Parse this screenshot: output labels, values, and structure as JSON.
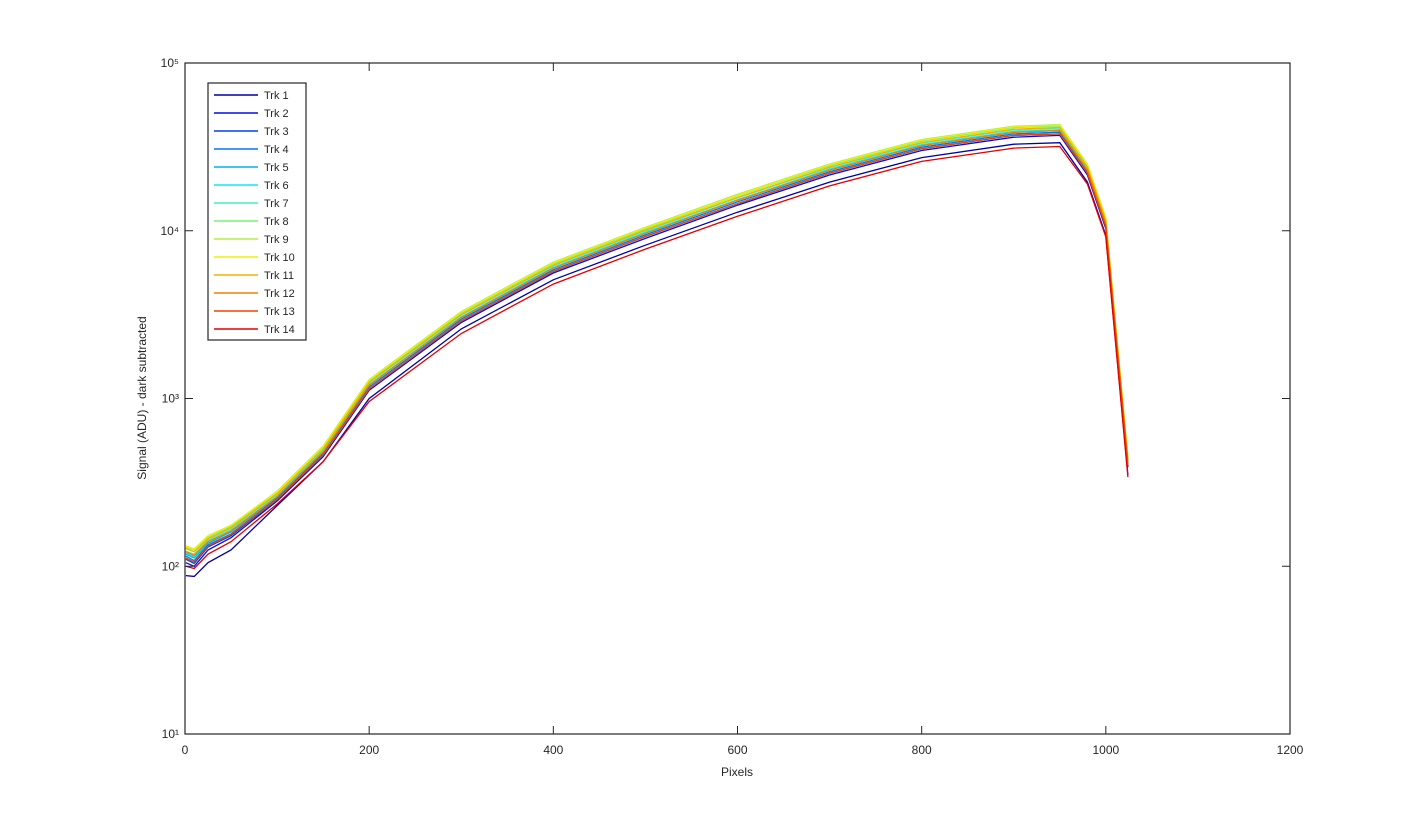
{
  "chart_data": {
    "type": "line",
    "xlabel": "Pixels",
    "ylabel": "Signal (ADU) - dark subtracted",
    "x": [
      1,
      10,
      25,
      50,
      100,
      150,
      200,
      300,
      400,
      500,
      600,
      700,
      800,
      900,
      950,
      980,
      1000,
      1024
    ],
    "xlim": [
      0,
      1200
    ],
    "xticks": [
      0,
      200,
      400,
      600,
      800,
      1000,
      1200
    ],
    "ylim": [
      10,
      100000
    ],
    "log_y": true,
    "yticks": [
      {
        "value": 10,
        "label": "10¹"
      },
      {
        "value": 100,
        "label": "10²"
      },
      {
        "value": 1000,
        "label": "10³"
      },
      {
        "value": 10000,
        "label": "10⁴"
      },
      {
        "value": 100000,
        "label": "10⁵"
      }
    ],
    "legend": "upper left",
    "series": [
      {
        "name": "Trk 1",
        "color": "#0000a8",
        "values": [
          88,
          87,
          105,
          125,
          230,
          420,
          1000,
          2600,
          5100,
          8200,
          12900,
          19500,
          27300,
          32800,
          33500,
          19500,
          9400,
          350
        ]
      },
      {
        "name": "Trk 2",
        "color": "#0010d8",
        "values": [
          105,
          100,
          125,
          148,
          245,
          450,
          1120,
          2840,
          5600,
          9000,
          14200,
          21500,
          30100,
          36100,
          37000,
          21500,
          10300,
          390
        ]
      },
      {
        "name": "Trk 3",
        "color": "#0044e8",
        "values": [
          110,
          104,
          130,
          152,
          250,
          460,
          1140,
          2900,
          5720,
          9240,
          14500,
          22000,
          30800,
          37000,
          37800,
          22000,
          10600,
          400
        ]
      },
      {
        "name": "Trk 4",
        "color": "#0078f0",
        "values": [
          115,
          108,
          134,
          156,
          255,
          470,
          1170,
          2970,
          5850,
          9450,
          14850,
          22500,
          31500,
          37800,
          38700,
          22500,
          10800,
          400
        ]
      },
      {
        "name": "Trk 5",
        "color": "#00b0f0",
        "values": [
          118,
          112,
          137,
          160,
          260,
          480,
          1200,
          3040,
          5980,
          9660,
          15200,
          23000,
          32200,
          38600,
          39600,
          23000,
          11000,
          410
        ]
      },
      {
        "name": "Trk 6",
        "color": "#10e8f0",
        "values": [
          120,
          114,
          140,
          163,
          262,
          485,
          1210,
          3070,
          6050,
          9770,
          15300,
          23300,
          32600,
          39100,
          40000,
          23300,
          11200,
          410
        ]
      },
      {
        "name": "Trk 7",
        "color": "#40f0c0",
        "values": [
          123,
          118,
          143,
          167,
          268,
          495,
          1240,
          3140,
          6180,
          9980,
          15700,
          23800,
          33300,
          39900,
          40900,
          23800,
          11400,
          420
        ]
      },
      {
        "name": "Trk 8",
        "color": "#78f078",
        "values": [
          127,
          122,
          147,
          172,
          275,
          510,
          1270,
          3230,
          6370,
          10300,
          16200,
          24500,
          34300,
          41200,
          42100,
          24500,
          11800,
          440
        ]
      },
      {
        "name": "Trk 9",
        "color": "#b4f040",
        "values": [
          130,
          125,
          150,
          175,
          280,
          520,
          1300,
          3300,
          6500,
          10500,
          16500,
          25000,
          35000,
          42000,
          43000,
          25000,
          12000,
          450
        ]
      },
      {
        "name": "Trk 10",
        "color": "#f0f000",
        "values": [
          132,
          127,
          152,
          176,
          278,
          515,
          1290,
          3270,
          6440,
          10400,
          16300,
          24800,
          34700,
          41600,
          42600,
          24800,
          11900,
          450
        ]
      },
      {
        "name": "Trk 11",
        "color": "#f0b400",
        "values": [
          128,
          122,
          146,
          170,
          270,
          500,
          1250,
          3170,
          6240,
          10100,
          15800,
          24000,
          33600,
          40300,
          41300,
          24000,
          11500,
          430
        ]
      },
      {
        "name": "Trk 12",
        "color": "#f08000",
        "values": [
          122,
          116,
          140,
          163,
          260,
          480,
          1200,
          3040,
          5980,
          9660,
          15200,
          23000,
          32200,
          38600,
          39600,
          23000,
          11000,
          420
        ]
      },
      {
        "name": "Trk 13",
        "color": "#f04400",
        "values": [
          112,
          106,
          132,
          155,
          250,
          460,
          1140,
          2900,
          5720,
          9240,
          14500,
          22000,
          30800,
          37000,
          37800,
          22000,
          10600,
          400
        ]
      },
      {
        "name": "Trk 14",
        "color": "#e00000",
        "values": [
          100,
          97,
          118,
          140,
          235,
          420,
          960,
          2440,
          4810,
          7770,
          12200,
          18500,
          25900,
          31100,
          31800,
          19000,
          9200,
          340
        ]
      }
    ]
  }
}
